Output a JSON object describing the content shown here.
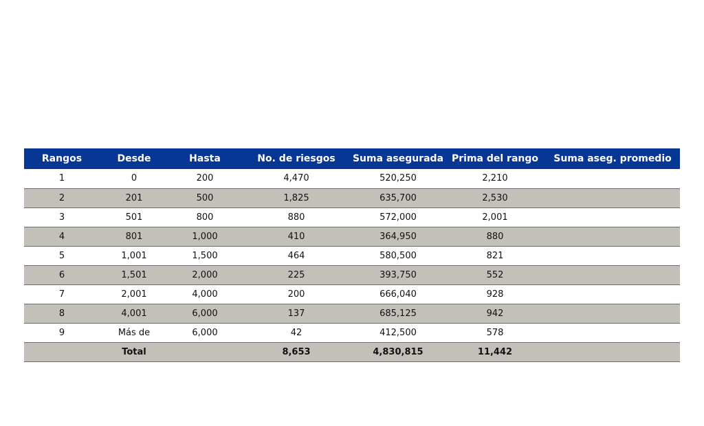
{
  "table": {
    "headers": [
      "Rangos",
      "Desde",
      "Hasta",
      "No. de riesgos",
      "Suma asegurada",
      "Prima del rango",
      "Suma aseg. promedio"
    ],
    "rows": [
      [
        "1",
        "0",
        "200",
        "4,470",
        "520,250",
        "2,210",
        ""
      ],
      [
        "2",
        "201",
        "500",
        "1,825",
        "635,700",
        "2,530",
        ""
      ],
      [
        "3",
        "501",
        "800",
        "880",
        "572,000",
        "2,001",
        ""
      ],
      [
        "4",
        "801",
        "1,000",
        "410",
        "364,950",
        "880",
        ""
      ],
      [
        "5",
        "1,001",
        "1,500",
        "464",
        "580,500",
        "821",
        ""
      ],
      [
        "6",
        "1,501",
        "2,000",
        "225",
        "393,750",
        "552",
        ""
      ],
      [
        "7",
        "2,001",
        "4,000",
        "200",
        "666,040",
        "928",
        ""
      ],
      [
        "8",
        "4,001",
        "6,000",
        "137",
        "685,125",
        "942",
        ""
      ],
      [
        "9",
        "Más de",
        "6,000",
        "42",
        "412,500",
        "578",
        ""
      ]
    ],
    "total": [
      "",
      "Total",
      "",
      "8,653",
      "4,830,815",
      "11,442",
      ""
    ]
  },
  "colors": {
    "header_bg": "#073694",
    "stripe_bg": "#c3bfb9"
  }
}
